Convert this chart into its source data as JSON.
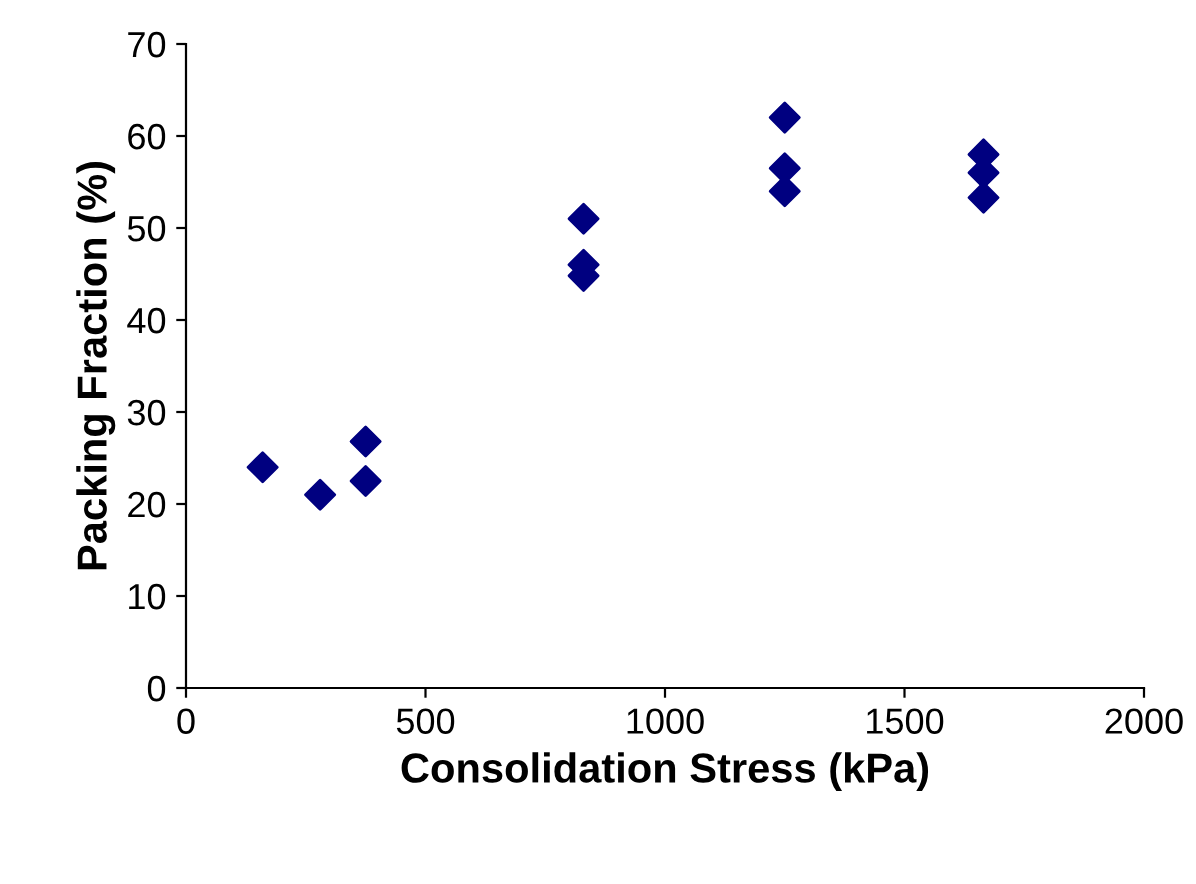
{
  "chart_data": {
    "type": "scatter",
    "xlabel": "Consolidation Stress (kPa)",
    "ylabel": "Packing Fraction (%)",
    "x": [
      160,
      280,
      375,
      375,
      830,
      830,
      830,
      1250,
      1250,
      1250,
      1665,
      1665,
      1665
    ],
    "series": [
      {
        "color": "#000080",
        "values": [
          24,
          21,
          22.5,
          26.8,
          51,
          46,
          44.8,
          62,
          56.5,
          54,
          58,
          56,
          53.3
        ]
      }
    ],
    "xlim": [
      0,
      2000
    ],
    "xticks": [
      0,
      500,
      1000,
      1500,
      2000
    ],
    "ylim": [
      0,
      70
    ],
    "yticks": [
      0,
      10,
      20,
      30,
      40,
      50,
      60,
      70
    ],
    "marker": "diamond",
    "grid": false,
    "legend": false
  }
}
